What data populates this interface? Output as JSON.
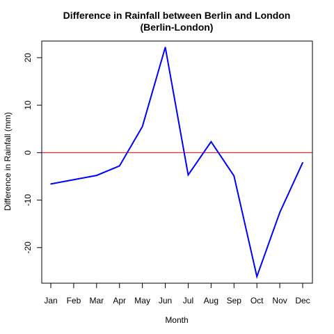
{
  "chart_data": {
    "type": "line",
    "title": "Difference in Rainfall between Berlin and London",
    "subtitle": "(Berlin-London)",
    "xlabel": "Month",
    "ylabel": "Difference in Rainfall (mm)",
    "categories": [
      "Jan",
      "Feb",
      "Mar",
      "Apr",
      "May",
      "Jun",
      "Jul",
      "Aug",
      "Sep",
      "Oct",
      "Nov",
      "Dec"
    ],
    "series": [
      {
        "values": [
          -6.6,
          -5.7,
          -4.8,
          -2.8,
          5.5,
          22.2,
          -4.7,
          2.3,
          -4.9,
          -26.1,
          -12.6,
          -2.1
        ],
        "color": "#0000ff"
      }
    ],
    "ylim": [
      -27.5,
      23.5
    ],
    "yticks": [
      -20,
      -10,
      0,
      10,
      20
    ],
    "reference_line": {
      "y": 0,
      "color": "#ff0000"
    },
    "grid": false,
    "legend": "none"
  }
}
